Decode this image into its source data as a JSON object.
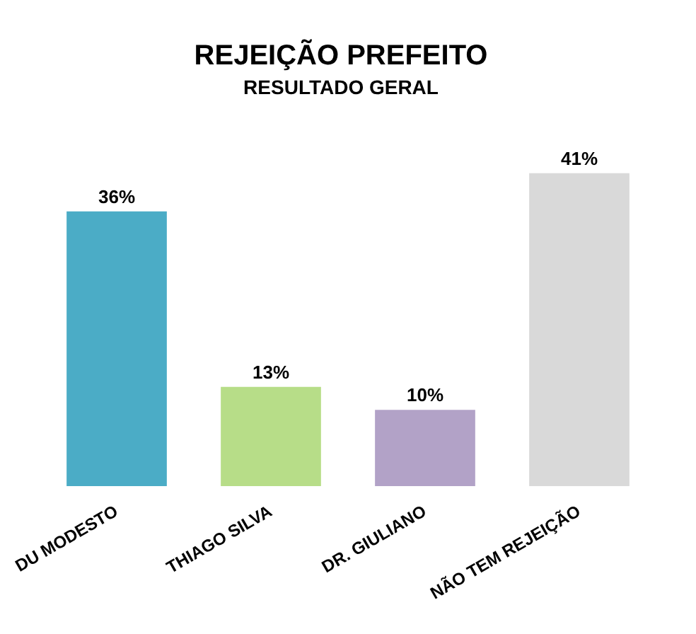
{
  "chart_data": {
    "type": "bar",
    "title": "REJEIÇÃO PREFEITO",
    "subtitle": "RESULTADO GERAL",
    "categories": [
      "DU MODESTO",
      "THIAGO SILVA",
      "DR. GIULIANO",
      "NÃO TEM REJEIÇÃO"
    ],
    "values": [
      36,
      13,
      10,
      41
    ],
    "colors": [
      "#4bacc6",
      "#b7dd88",
      "#b2a2c7",
      "#d9d9d9"
    ],
    "value_labels": [
      "36%",
      "13%",
      "10%",
      "41%"
    ],
    "grid": false,
    "legend": false
  }
}
